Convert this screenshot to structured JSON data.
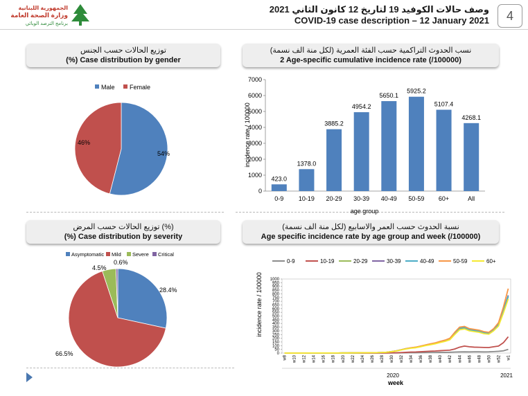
{
  "header": {
    "logo_text_line1": "الجمهورية اللبنانية",
    "logo_text_line2": "وزارة الصحة العامة",
    "logo_text_line3": "برنامج الترصد الوبائي",
    "title_ar": "وصف حالات الكوفيد 19 لتاريخ 12 كانون الثاني 2021",
    "title_en": "COVID-19 case description – 12 January 2021",
    "page_number": "4"
  },
  "panels": {
    "gender": {
      "title_ar": "توزيع الحالات حسب الجنس",
      "title_en": "(%) Case distribution by gender"
    },
    "age": {
      "title_ar": "نسب الحدوث التراكمية حسب الفئة العمرية (لكل منة الف نسمة)",
      "title_en": "2 Age-specific cumulative incidence rate (/100000)"
    },
    "severity": {
      "title_ar": "توزيع الحالات حسب المرض (%)",
      "title_en": "(%) Case distribution by severity"
    },
    "weekly": {
      "title_ar": "نسبة الحدوث حسب العمر والاسابيع (لكل منة الف نسمة)",
      "title_en": "Age specific incidence rate by age group and week (/100000)"
    }
  },
  "colors": {
    "blue": "#4f81bd",
    "red": "#c0504d",
    "green": "#9bbb59",
    "purple": "#8064a2",
    "nav": "#4a78b0"
  },
  "chart_data": [
    {
      "type": "pie",
      "title": "(%) Case distribution by gender",
      "labels": [
        "Male",
        "Female"
      ],
      "values": [
        54,
        46
      ],
      "data_labels": [
        "54%",
        "46%"
      ],
      "colors": [
        "#4f81bd",
        "#c0504d"
      ],
      "legend": "top"
    },
    {
      "type": "bar",
      "title": "2 Age-specific cumulative incidence rate (/100000)",
      "categories": [
        "0-9",
        "10-19",
        "20-29",
        "30-39",
        "40-49",
        "50-59",
        "60+",
        "All"
      ],
      "values": [
        423.0,
        1378.0,
        3885.2,
        4954.2,
        5650.1,
        5925.2,
        5107.4,
        4268.1
      ],
      "data_labels": [
        "423.0",
        "1378.0",
        "3885.2",
        "4954.2",
        "5650.1",
        "5925.2",
        "5107.4",
        "4268.1"
      ],
      "xlabel": "age group",
      "ylabel": "incidence rate / 100000",
      "ylim": [
        0,
        7000
      ],
      "yticks": [
        "0",
        "1000",
        "2000",
        "3000",
        "4000",
        "5000",
        "6000",
        "7000"
      ],
      "color": "#4f81bd"
    },
    {
      "type": "pie",
      "title": "(%) Case distribution by severity",
      "labels": [
        "Asymptomatic",
        "Mild",
        "Severe",
        "Critical"
      ],
      "values": [
        28.4,
        66.5,
        4.5,
        0.6
      ],
      "data_labels": [
        "28.4%",
        "66.5%",
        "4.5%",
        "0.6%"
      ],
      "colors": [
        "#4f81bd",
        "#c0504d",
        "#9bbb59",
        "#8064a2"
      ],
      "legend": "top"
    },
    {
      "type": "line",
      "title": "Age specific incidence rate by age group and week (/100000)",
      "xlabel": "week",
      "ylabel": "incidence rate / 100000",
      "ylim": [
        0,
        1000
      ],
      "yticks": [
        "0",
        "50",
        "100",
        "150",
        "200",
        "250",
        "300",
        "350",
        "400",
        "450",
        "500",
        "550",
        "600",
        "650",
        "700",
        "750",
        "800",
        "850",
        "900",
        "950",
        "1000"
      ],
      "x": [
        "w8",
        "w9",
        "w10",
        "w11",
        "w12",
        "w13",
        "w14",
        "w15",
        "w16",
        "w17",
        "w18",
        "w19",
        "w20",
        "w21",
        "w22",
        "w23",
        "w24",
        "w25",
        "w26",
        "w27",
        "w28",
        "w29",
        "w30",
        "w31",
        "w32",
        "w33",
        "w34",
        "w35",
        "w36",
        "w37",
        "w38",
        "w39",
        "w40",
        "w41",
        "w42",
        "w43",
        "w44",
        "w45",
        "w46",
        "w47",
        "w48",
        "w49",
        "w50",
        "w51",
        "w52",
        "w53",
        "w1"
      ],
      "xtick_labels": [
        "w8",
        "w10",
        "w12",
        "w14",
        "w16",
        "w18",
        "w20",
        "w22",
        "w24",
        "w26",
        "w28",
        "w30",
        "w32",
        "w34",
        "w36",
        "w38",
        "w40",
        "w42",
        "w44",
        "w46",
        "w48",
        "w50",
        "w52",
        "w1"
      ],
      "year_labels": [
        "2020",
        "2021"
      ],
      "legend": "top",
      "series": [
        {
          "name": "0-9",
          "color": "#8c8c8c",
          "values": [
            0,
            0,
            0,
            0,
            0,
            0,
            0,
            0,
            0,
            0,
            0,
            0,
            0,
            0,
            0,
            0,
            0,
            0,
            0,
            0,
            1,
            1,
            2,
            2,
            3,
            4,
            5,
            5,
            6,
            7,
            8,
            8,
            9,
            10,
            11,
            14,
            16,
            17,
            16,
            17,
            17,
            16,
            17,
            20,
            24,
            30,
            50
          ]
        },
        {
          "name": "10-19",
          "color": "#c0504d",
          "values": [
            0,
            0,
            0,
            0,
            0,
            0,
            0,
            0,
            0,
            0,
            0,
            0,
            0,
            0,
            0,
            0,
            0,
            0,
            0,
            0,
            1,
            2,
            4,
            5,
            7,
            10,
            14,
            15,
            18,
            22,
            26,
            28,
            32,
            36,
            40,
            55,
            80,
            95,
            85,
            80,
            78,
            76,
            75,
            85,
            95,
            140,
            220
          ]
        },
        {
          "name": "20-29",
          "color": "#9bbb59",
          "values": [
            0,
            0,
            0,
            0,
            0,
            1,
            1,
            1,
            1,
            1,
            1,
            1,
            2,
            2,
            3,
            3,
            4,
            4,
            5,
            6,
            8,
            12,
            20,
            30,
            45,
            60,
            70,
            75,
            90,
            105,
            120,
            130,
            150,
            165,
            190,
            260,
            330,
            340,
            310,
            300,
            290,
            270,
            260,
            310,
            380,
            560,
            760
          ]
        },
        {
          "name": "30-39",
          "color": "#8064a2",
          "values": [
            0,
            0,
            0,
            0,
            0,
            1,
            1,
            1,
            1,
            1,
            1,
            1,
            2,
            2,
            3,
            3,
            4,
            4,
            5,
            6,
            8,
            12,
            20,
            30,
            45,
            60,
            70,
            78,
            92,
            108,
            122,
            135,
            155,
            170,
            195,
            270,
            340,
            350,
            320,
            310,
            300,
            280,
            270,
            320,
            390,
            580,
            780
          ]
        },
        {
          "name": "40-49",
          "color": "#4bacc6",
          "values": [
            0,
            0,
            0,
            0,
            0,
            1,
            1,
            1,
            1,
            1,
            1,
            1,
            2,
            2,
            3,
            3,
            4,
            4,
            5,
            6,
            8,
            12,
            20,
            30,
            45,
            60,
            70,
            78,
            92,
            108,
            122,
            135,
            155,
            170,
            195,
            265,
            335,
            345,
            315,
            305,
            295,
            275,
            265,
            315,
            385,
            570,
            770
          ]
        },
        {
          "name": "50-59",
          "color": "#f79646",
          "values": [
            0,
            0,
            0,
            0,
            0,
            1,
            1,
            1,
            1,
            1,
            1,
            1,
            2,
            2,
            3,
            3,
            4,
            4,
            5,
            6,
            8,
            12,
            20,
            30,
            45,
            60,
            72,
            80,
            95,
            110,
            125,
            138,
            158,
            175,
            200,
            280,
            350,
            360,
            330,
            320,
            310,
            290,
            280,
            330,
            410,
            620,
            870
          ]
        },
        {
          "name": "60+",
          "color": "#f5e930",
          "values": [
            0,
            0,
            0,
            0,
            0,
            1,
            1,
            1,
            1,
            1,
            1,
            1,
            2,
            2,
            3,
            3,
            4,
            4,
            5,
            6,
            8,
            12,
            18,
            28,
            42,
            55,
            65,
            72,
            85,
            100,
            112,
            125,
            142,
            158,
            180,
            250,
            315,
            325,
            300,
            290,
            280,
            262,
            255,
            300,
            365,
            540,
            730
          ]
        }
      ]
    }
  ]
}
